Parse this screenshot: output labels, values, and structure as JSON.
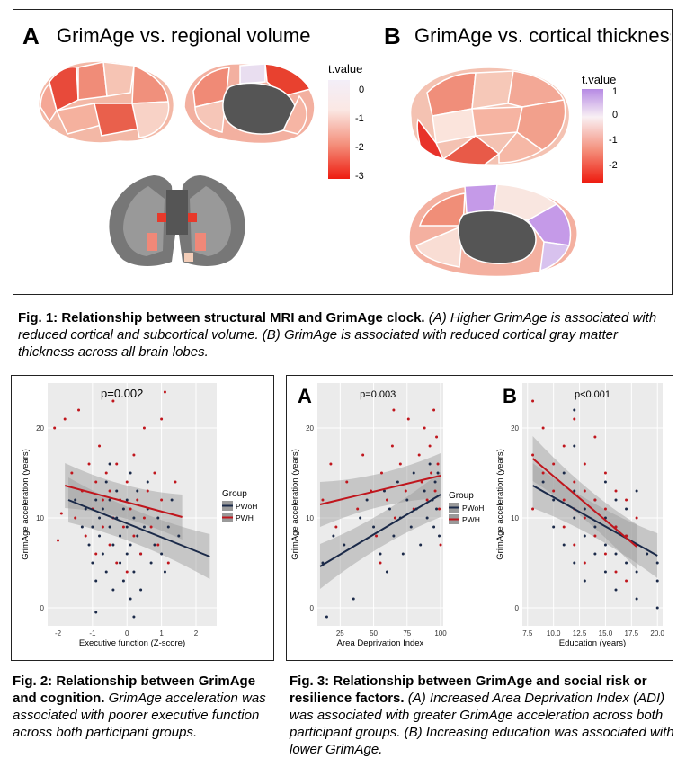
{
  "fig1": {
    "label_a": "A",
    "title_a": "GrimAge vs. regional volume",
    "label_b": "B",
    "title_b": "GrimAge vs. cortical thickness",
    "legend_a": {
      "title": "t.value",
      "ticks": [
        "0",
        "-1",
        "-2",
        "-3"
      ]
    },
    "legend_b": {
      "title": "t.value",
      "ticks": [
        "1",
        "0",
        "-1",
        "-2"
      ]
    },
    "caption_bold": "Fig. 1: Relationship between structural MRI and GrimAge clock.",
    "caption_italic": " (A) Higher GrimAge is associated with reduced cortical and subcortical volume. (B) GrimAge is associated with reduced cortical gray matter thickness across all brain lobes."
  },
  "fig2": {
    "caption_bold": "Fig. 2: Relationship between GrimAge and cognition.",
    "caption_italic": " GrimAge acceleration was associated with poorer executive function across both participant groups."
  },
  "fig3": {
    "caption_bold": "Fig. 3: Relationship between GrimAge and social risk or resilience factors.",
    "caption_italic": " (A) Increased Area Deprivation Index (ADI) was associated with greater GrimAge acceleration across both participant groups. (B) Increasing education was associated with lower GrimAge."
  },
  "colors": {
    "pwoh": "#1b2a49",
    "pwh": "#c0161d",
    "plot_bg": "#ebebeb"
  },
  "chart_data": [
    {
      "id": "fig2",
      "type": "scatter",
      "title": "p=0.002",
      "xlabel": "Executive function (Z-score)",
      "ylabel": "GrimAge acceleration (years)",
      "xlim": [
        -2.3,
        2.6
      ],
      "ylim": [
        -2,
        25
      ],
      "xticks": [
        -2,
        -1,
        0,
        1,
        2
      ],
      "yticks": [
        0,
        10,
        20
      ],
      "legend": {
        "title": "Group",
        "entries": [
          "PWoH",
          "PWH"
        ],
        "placement": "right"
      },
      "series": [
        {
          "name": "PWoH",
          "fit": [
            [
              -1.7,
              12.0
            ],
            [
              2.4,
              5.7
            ]
          ],
          "points": [
            [
              -1.5,
              12
            ],
            [
              -1.3,
              9
            ],
            [
              -1.2,
              11
            ],
            [
              -1.1,
              7
            ],
            [
              -1,
              9
            ],
            [
              -1,
              5
            ],
            [
              -0.9,
              12
            ],
            [
              -0.9,
              3
            ],
            [
              -0.8,
              10
            ],
            [
              -0.8,
              8
            ],
            [
              -0.7,
              6
            ],
            [
              -0.7,
              11
            ],
            [
              -0.6,
              14
            ],
            [
              -0.6,
              4
            ],
            [
              -0.5,
              9
            ],
            [
              -0.5,
              12
            ],
            [
              -0.4,
              7
            ],
            [
              -0.4,
              2
            ],
            [
              -0.3,
              10
            ],
            [
              -0.3,
              13
            ],
            [
              -0.2,
              5
            ],
            [
              -0.2,
              8
            ],
            [
              -0.1,
              11
            ],
            [
              -0.1,
              3
            ],
            [
              0,
              6
            ],
            [
              0,
              9
            ],
            [
              0,
              12
            ],
            [
              0.1,
              1
            ],
            [
              0.1,
              7
            ],
            [
              0.2,
              10
            ],
            [
              0.2,
              4
            ],
            [
              0.3,
              8
            ],
            [
              0.3,
              13
            ],
            [
              0.4,
              6
            ],
            [
              0.4,
              2
            ],
            [
              0.5,
              9
            ],
            [
              0.6,
              11
            ],
            [
              0.7,
              5
            ],
            [
              0.8,
              7
            ],
            [
              0.9,
              10
            ],
            [
              1,
              6
            ],
            [
              1.1,
              4
            ],
            [
              1.2,
              9
            ],
            [
              1.5,
              8
            ],
            [
              -0.9,
              -0.5
            ],
            [
              0.2,
              -1
            ],
            [
              1.3,
              12
            ],
            [
              -0.5,
              16
            ],
            [
              0.1,
              15
            ],
            [
              0.6,
              14
            ]
          ]
        },
        {
          "name": "PWH",
          "fit": [
            [
              -1.8,
              13.6
            ],
            [
              1.6,
              10.1
            ]
          ],
          "points": [
            [
              -2.1,
              20
            ],
            [
              -2,
              7.5
            ],
            [
              -1.8,
              21
            ],
            [
              -1.6,
              15
            ],
            [
              -1.5,
              10
            ],
            [
              -1.3,
              13
            ],
            [
              -1.2,
              8
            ],
            [
              -1.1,
              16
            ],
            [
              -1,
              11
            ],
            [
              -0.9,
              14
            ],
            [
              -0.9,
              6
            ],
            [
              -0.8,
              18
            ],
            [
              -0.7,
              12
            ],
            [
              -0.7,
              9
            ],
            [
              -0.6,
              15
            ],
            [
              -0.5,
              7
            ],
            [
              -0.5,
              13
            ],
            [
              -0.4,
              10
            ],
            [
              -0.3,
              16
            ],
            [
              -0.3,
              5
            ],
            [
              -0.2,
              12
            ],
            [
              -0.1,
              9
            ],
            [
              0,
              14
            ],
            [
              0,
              4
            ],
            [
              0.1,
              11
            ],
            [
              0.2,
              8
            ],
            [
              0.2,
              17
            ],
            [
              0.3,
              12
            ],
            [
              0.4,
              6
            ],
            [
              0.5,
              10
            ],
            [
              0.6,
              13
            ],
            [
              0.7,
              9
            ],
            [
              0.8,
              15
            ],
            [
              0.9,
              7
            ],
            [
              1,
              12
            ],
            [
              1,
              21
            ],
            [
              1.1,
              24
            ],
            [
              1.2,
              5
            ],
            [
              1.4,
              14
            ],
            [
              -1.4,
              22
            ],
            [
              -0.4,
              23
            ],
            [
              0.5,
              20
            ],
            [
              -1.9,
              10.5
            ]
          ]
        }
      ]
    },
    {
      "id": "fig3a",
      "type": "scatter",
      "panel_label": "A",
      "title": "p=0.003",
      "xlabel": "Area Deprivation Index",
      "ylabel": "GrimAge acceleration (years)",
      "xlim": [
        8,
        102
      ],
      "ylim": [
        -2,
        25
      ],
      "xticks": [
        25,
        50,
        75,
        100
      ],
      "yticks": [
        0,
        10,
        20
      ],
      "legend": {
        "title": "Group",
        "entries": [
          "PWoH",
          "PWH"
        ],
        "placement": "right"
      },
      "series": [
        {
          "name": "PWoH",
          "fit": [
            [
              10,
              4.6
            ],
            [
              100,
              12.6
            ]
          ],
          "points": [
            [
              12,
              5
            ],
            [
              15,
              -1
            ],
            [
              20,
              8
            ],
            [
              28,
              7
            ],
            [
              35,
              1
            ],
            [
              40,
              10
            ],
            [
              45,
              12
            ],
            [
              50,
              9
            ],
            [
              55,
              6
            ],
            [
              58,
              13
            ],
            [
              60,
              4
            ],
            [
              62,
              11
            ],
            [
              65,
              8
            ],
            [
              68,
              14
            ],
            [
              70,
              10
            ],
            [
              72,
              6
            ],
            [
              75,
              12
            ],
            [
              78,
              9
            ],
            [
              80,
              15
            ],
            [
              82,
              11
            ],
            [
              85,
              7
            ],
            [
              88,
              13
            ],
            [
              90,
              10
            ],
            [
              92,
              16
            ],
            [
              94,
              12
            ],
            [
              95,
              9
            ],
            [
              96,
              14
            ],
            [
              97,
              11
            ],
            [
              98,
              15
            ],
            [
              99,
              8
            ]
          ]
        },
        {
          "name": "PWH",
          "fit": [
            [
              10,
              11.5
            ],
            [
              100,
              14.7
            ]
          ],
          "points": [
            [
              12,
              12
            ],
            [
              18,
              16
            ],
            [
              22,
              9
            ],
            [
              30,
              14
            ],
            [
              38,
              11
            ],
            [
              42,
              17
            ],
            [
              48,
              13
            ],
            [
              52,
              8
            ],
            [
              56,
              15
            ],
            [
              60,
              12
            ],
            [
              64,
              18
            ],
            [
              66,
              10
            ],
            [
              70,
              16
            ],
            [
              74,
              13
            ],
            [
              76,
              21
            ],
            [
              80,
              11
            ],
            [
              84,
              17
            ],
            [
              86,
              14
            ],
            [
              88,
              20
            ],
            [
              90,
              12
            ],
            [
              92,
              18
            ],
            [
              93,
              15
            ],
            [
              95,
              22
            ],
            [
              96,
              13
            ],
            [
              97,
              19
            ],
            [
              98,
              16
            ],
            [
              99,
              11
            ],
            [
              100,
              7
            ],
            [
              55,
              5
            ],
            [
              65,
              22
            ]
          ]
        }
      ]
    },
    {
      "id": "fig3b",
      "type": "scatter",
      "panel_label": "B",
      "title": "p<0.001",
      "xlabel": "Education (years)",
      "ylabel": "GrimAge acceleration (years)",
      "xlim": [
        7,
        20.5
      ],
      "ylim": [
        -2,
        25
      ],
      "xticks": [
        "7.5",
        "10.0",
        "12.5",
        "15.0",
        "17.5",
        "20.0"
      ],
      "yticks": [
        0,
        10,
        20
      ],
      "series": [
        {
          "name": "PWoH",
          "fit": [
            [
              8,
              13.6
            ],
            [
              20,
              5.8
            ]
          ],
          "points": [
            [
              9,
              14
            ],
            [
              10,
              12
            ],
            [
              10,
              9
            ],
            [
              11,
              15
            ],
            [
              11,
              7
            ],
            [
              12,
              13
            ],
            [
              12,
              10
            ],
            [
              12,
              5
            ],
            [
              12,
              18
            ],
            [
              12,
              22
            ],
            [
              13,
              11
            ],
            [
              13,
              8
            ],
            [
              13,
              3
            ],
            [
              14,
              12
            ],
            [
              14,
              9
            ],
            [
              14,
              6
            ],
            [
              15,
              10
            ],
            [
              15,
              7
            ],
            [
              15,
              4
            ],
            [
              15,
              14
            ],
            [
              16,
              9
            ],
            [
              16,
              6
            ],
            [
              16,
              2
            ],
            [
              16,
              12
            ],
            [
              17,
              8
            ],
            [
              17,
              5
            ],
            [
              17,
              11
            ],
            [
              18,
              7
            ],
            [
              18,
              4
            ],
            [
              18,
              13
            ],
            [
              18,
              1
            ],
            [
              19,
              6
            ],
            [
              20,
              5
            ],
            [
              20,
              3
            ],
            [
              20,
              0
            ]
          ]
        },
        {
          "name": "PWH",
          "fit": [
            [
              8,
              16.6
            ],
            [
              18,
              6.8
            ]
          ],
          "points": [
            [
              8,
              23
            ],
            [
              8,
              17
            ],
            [
              8,
              11
            ],
            [
              9,
              15
            ],
            [
              9,
              20
            ],
            [
              10,
              13
            ],
            [
              10,
              16
            ],
            [
              11,
              12
            ],
            [
              11,
              18
            ],
            [
              11,
              9
            ],
            [
              12,
              14
            ],
            [
              12,
              11
            ],
            [
              12,
              21
            ],
            [
              12,
              7
            ],
            [
              13,
              13
            ],
            [
              13,
              10
            ],
            [
              13,
              16
            ],
            [
              13,
              5
            ],
            [
              14,
              12
            ],
            [
              14,
              8
            ],
            [
              14,
              19
            ],
            [
              15,
              11
            ],
            [
              15,
              6
            ],
            [
              15,
              15
            ],
            [
              16,
              9
            ],
            [
              16,
              13
            ],
            [
              16,
              4
            ],
            [
              17,
              8
            ],
            [
              17,
              12
            ],
            [
              17,
              3
            ],
            [
              18,
              7
            ],
            [
              18,
              10
            ]
          ]
        }
      ]
    }
  ]
}
